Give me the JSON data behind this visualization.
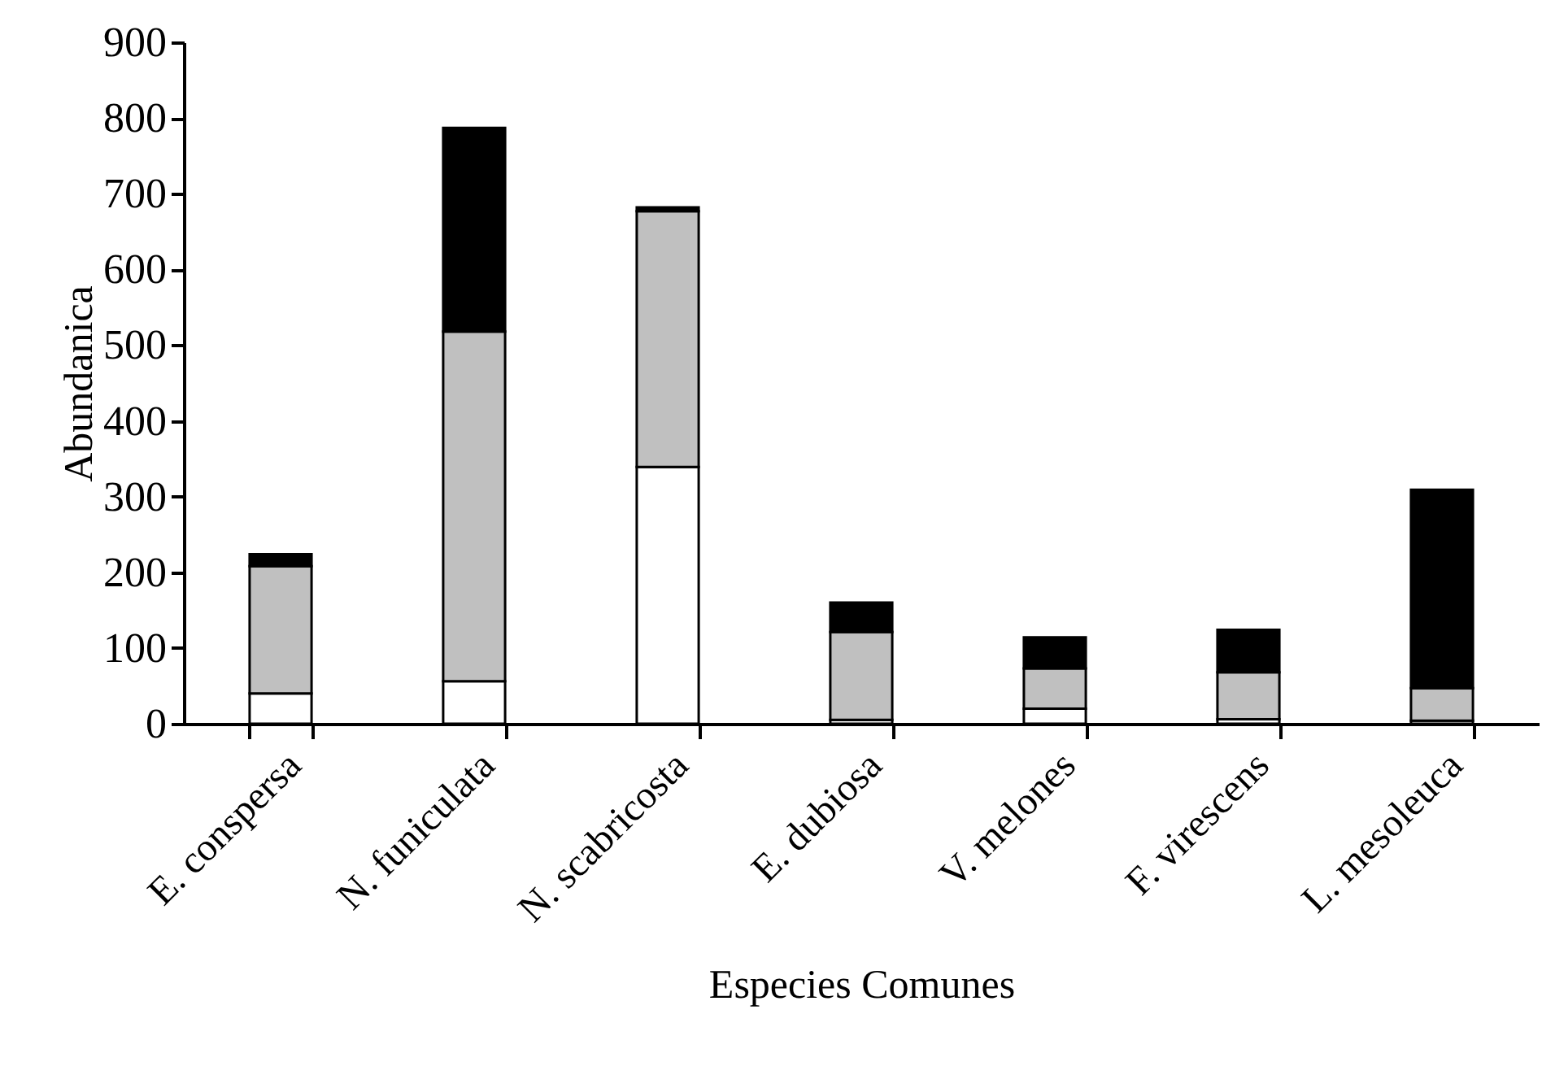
{
  "chart_data": {
    "type": "bar",
    "stacked": true,
    "xlabel": "Especies Comunes",
    "ylabel": "Abundanica",
    "categories": [
      "E. conspersa",
      "N. funiculata",
      "N. scabricosta",
      "E. dubiosa",
      "V. melones",
      "F. virescens",
      "L. mesoleuca"
    ],
    "series": [
      {
        "color": "#ffffff",
        "values": [
          40,
          56,
          339,
          5,
          20,
          6,
          4
        ]
      },
      {
        "color": "#c0c0c0",
        "values": [
          168,
          462,
          338,
          116,
          53,
          62,
          43
        ]
      },
      {
        "color": "#000000",
        "values": [
          16,
          269,
          5,
          39,
          41,
          56,
          262
        ]
      }
    ],
    "ylim": [
      0,
      900
    ],
    "yticks": [
      0,
      100,
      200,
      300,
      400,
      500,
      600,
      700,
      800,
      900
    ],
    "grid": false,
    "legend": false
  }
}
